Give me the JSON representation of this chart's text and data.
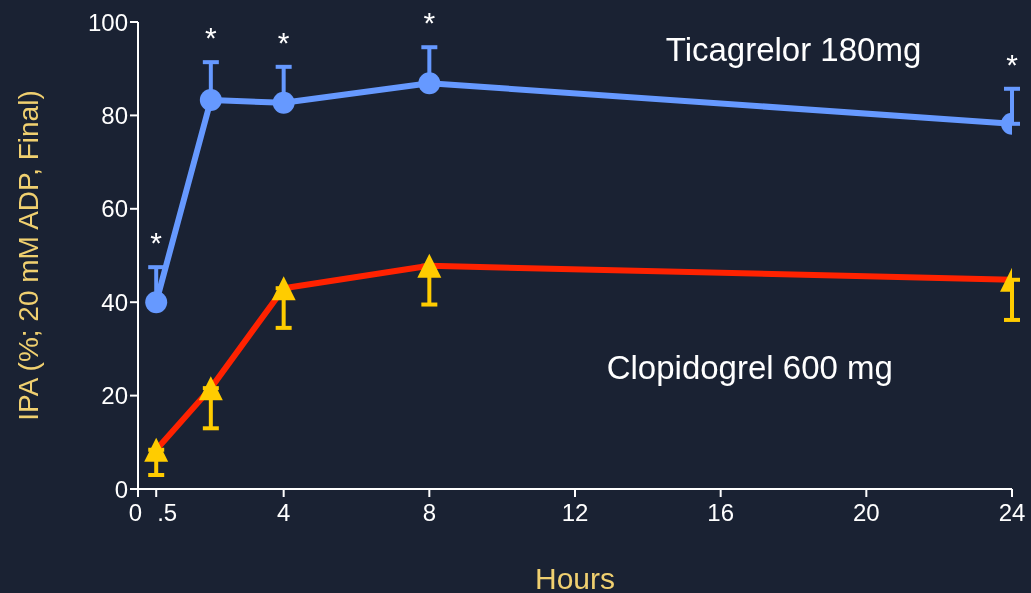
{
  "chart_data": {
    "type": "line",
    "xlabel": "Hours",
    "ylabel": "IPA (%; 20 mM ADP, Final)",
    "x": [
      0.5,
      2,
      4,
      8,
      24
    ],
    "series": [
      {
        "name": "Ticagrelor 180mg",
        "color": "#6699ff",
        "marker": "circle",
        "values": [
          40.0,
          83.3,
          82.7,
          86.9,
          78.2
        ],
        "errors": [
          [
            40.0,
            47.5
          ],
          [
            83.3,
            91.4
          ],
          [
            82.7,
            90.4
          ],
          [
            86.9,
            94.6
          ],
          [
            78.2,
            85.7
          ]
        ]
      },
      {
        "name": "Clopidogrel 600 mg",
        "color": "#ff2200",
        "colors": [
          "#ffcc00",
          "#ffcc00",
          "#ffcc00",
          "#ffcc00",
          "#ffcc00"
        ],
        "marker": "triangle",
        "values": [
          8.4,
          21.6,
          43,
          47.8,
          44.8
        ],
        "errors": [
          [
            3,
            8.4
          ],
          [
            13,
            21.6
          ],
          [
            34.5,
            43
          ],
          [
            39.5,
            47.8
          ],
          [
            36.2,
            44.8
          ]
        ]
      }
    ],
    "annotations": [
      "*",
      "*",
      "*",
      "*",
      "*"
    ],
    "xlim": [
      0,
      24
    ],
    "xticks": [
      0,
      {
        "value": 0.5,
        "label": ".5"
      },
      4,
      8,
      12,
      16,
      20,
      24
    ],
    "ylim": [
      0,
      100
    ],
    "yticks": [
      0,
      20,
      40,
      60,
      80,
      100
    ],
    "grid": false,
    "legend": false,
    "line_style": "solid"
  }
}
